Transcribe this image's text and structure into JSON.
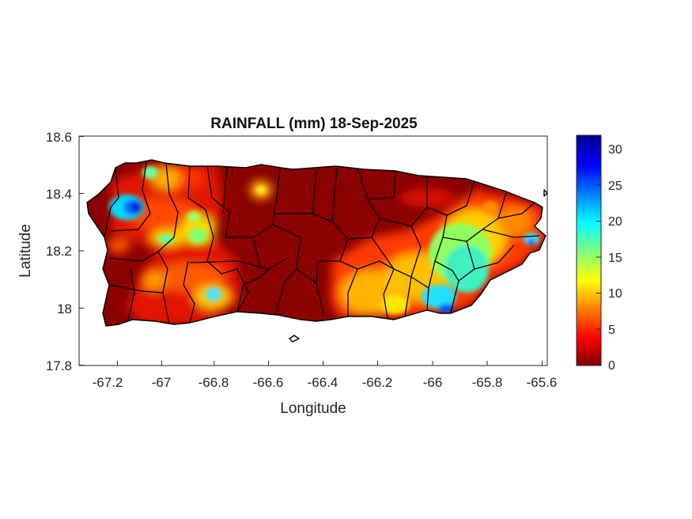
{
  "title": "RAINFALL (mm) 18-Sep-2025",
  "xlabel": "Longitude",
  "ylabel": "Latitude",
  "x_ticks": [
    "-67.2",
    "-67",
    "-66.8",
    "-66.6",
    "-66.4",
    "-66.2",
    "-66",
    "-65.8",
    "-65.6"
  ],
  "y_ticks": [
    "18.6",
    "18.4",
    "18.2",
    "18",
    "17.8"
  ],
  "colorbar": {
    "ticks": [
      "30",
      "25",
      "20",
      "15",
      "10",
      "5",
      "0"
    ],
    "range": [
      0,
      32
    ],
    "colormap": "jet"
  },
  "map_data": {
    "region": "Puerto Rico",
    "lon_range": [
      -67.3,
      -65.58
    ],
    "lat_range": [
      17.8,
      18.6
    ],
    "rain_hotspots": [
      {
        "lon": -67.12,
        "lat": 18.35,
        "mm": 30
      },
      {
        "lon": -67.15,
        "lat": 18.33,
        "mm": 24
      },
      {
        "lon": -67.05,
        "lat": 18.47,
        "mm": 17
      },
      {
        "lon": -66.98,
        "lat": 18.22,
        "mm": 17
      },
      {
        "lon": -66.88,
        "lat": 18.22,
        "mm": 17
      },
      {
        "lon": -66.83,
        "lat": 18.06,
        "mm": 18
      },
      {
        "lon": -66.63,
        "lat": 18.41,
        "mm": 10
      },
      {
        "lon": -66.24,
        "lat": 18.02,
        "mm": 12
      },
      {
        "lon": -66.05,
        "lat": 18.02,
        "mm": 16
      },
      {
        "lon": -65.98,
        "lat": 17.99,
        "mm": 25
      },
      {
        "lon": -65.88,
        "lat": 18.12,
        "mm": 19
      },
      {
        "lon": -65.95,
        "lat": 18.22,
        "mm": 14
      },
      {
        "lon": -65.65,
        "lat": 18.25,
        "mm": 17
      }
    ]
  }
}
